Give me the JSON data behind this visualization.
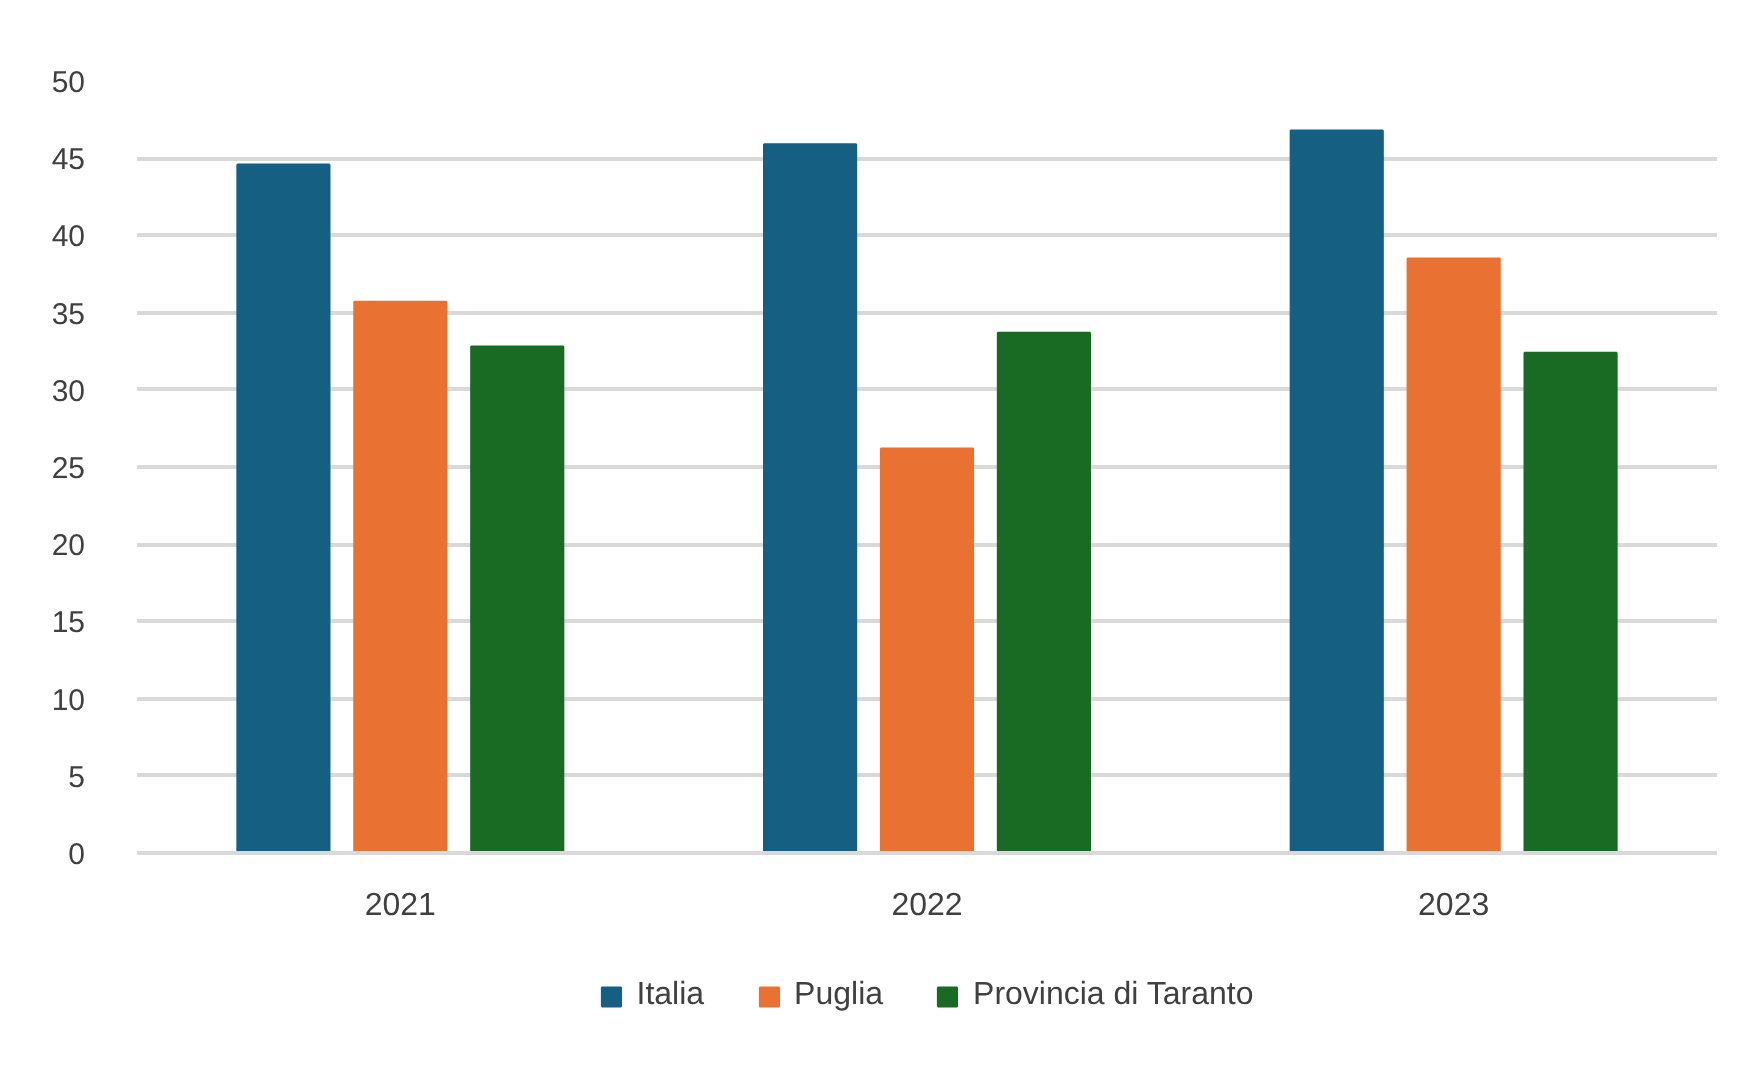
{
  "chart_data": {
    "type": "bar",
    "categories": [
      "2021",
      "2022",
      "2023"
    ],
    "series": [
      {
        "name": "Italia",
        "color": "#156082",
        "values": [
          44.6,
          45.9,
          46.8
        ]
      },
      {
        "name": "Puglia",
        "color": "#e97132",
        "values": [
          35.7,
          26.2,
          38.5
        ]
      },
      {
        "name": "Provincia di Taranto",
        "color": "#196b24",
        "values": [
          32.8,
          33.7,
          32.4
        ]
      }
    ],
    "ylim": [
      0,
      50
    ],
    "yticks": [
      0,
      5,
      10,
      15,
      20,
      25,
      30,
      35,
      40,
      45,
      50
    ],
    "grid": "y",
    "legend": "bottom"
  }
}
